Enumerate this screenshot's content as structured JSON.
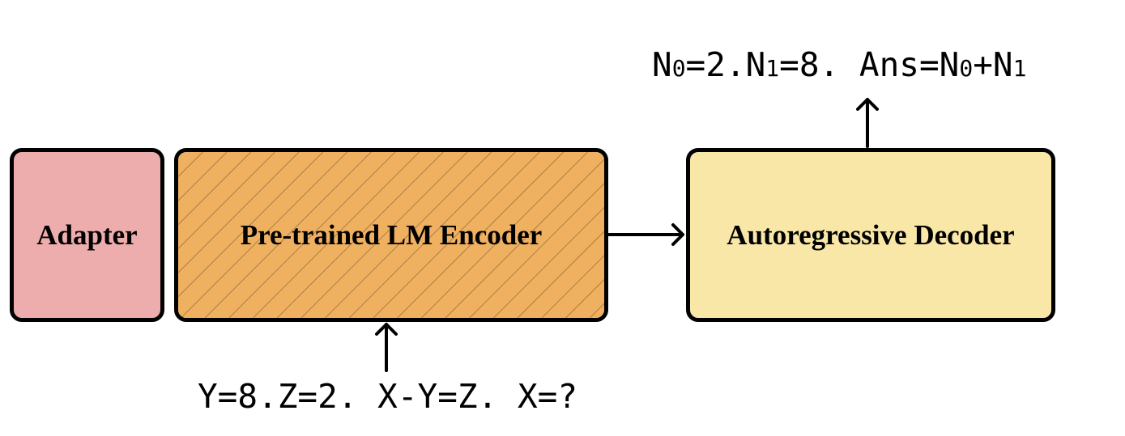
{
  "colors": {
    "adapter_fill": "#EDADAC",
    "encoder_fill": "#EFB060",
    "encoder_hatch": "#8C6A3A",
    "decoder_fill": "#F9E7A8",
    "border": "#000000"
  },
  "boxes": {
    "adapter": {
      "label": "Adapter"
    },
    "encoder": {
      "label": "Pre-trained LM Encoder"
    },
    "decoder": {
      "label": "Autoregressive Decoder"
    }
  },
  "input_text": "Y=8.Z=2. X-Y=Z. X=?",
  "output_text": {
    "part1": "N",
    "part2": "0",
    "part3": "=2.N",
    "part4": "1",
    "part5": "=8. Ans=N",
    "part6": "0",
    "part7": "+N",
    "part8": "1"
  }
}
